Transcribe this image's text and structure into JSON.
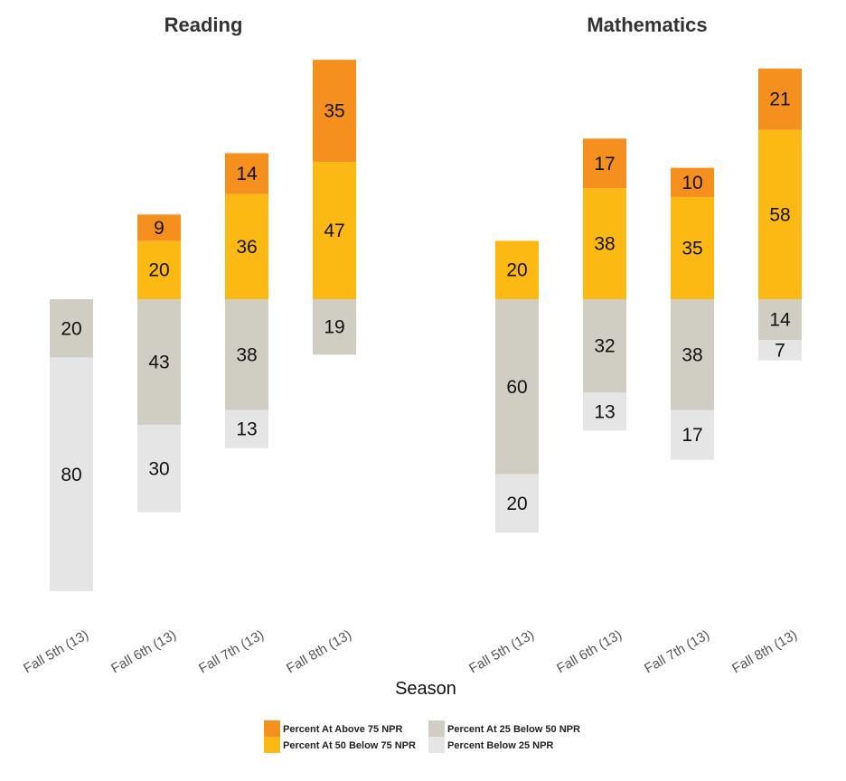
{
  "chart_data": {
    "type": "bar",
    "subtype": "diverging-stacked",
    "xlabel": "Season",
    "categories": [
      "Fall 5th (13)",
      "Fall 6th (13)",
      "Fall 7th (13)",
      "Fall 8th (13)"
    ],
    "panels": [
      {
        "title": "Reading",
        "series": [
          {
            "name": "Percent At Above 75 NPR",
            "values": [
              0,
              9,
              14,
              35
            ]
          },
          {
            "name": "Percent At 50 Below 75 NPR",
            "values": [
              0,
              20,
              36,
              47
            ]
          },
          {
            "name": "Percent At 25 Below 50 NPR",
            "values": [
              20,
              43,
              38,
              19
            ]
          },
          {
            "name": "Percent Below 25 NPR",
            "values": [
              80,
              30,
              13,
              0
            ]
          }
        ]
      },
      {
        "title": "Mathematics",
        "series": [
          {
            "name": "Percent At Above 75 NPR",
            "values": [
              0,
              17,
              10,
              21
            ]
          },
          {
            "name": "Percent At 50 Below 75 NPR",
            "values": [
              20,
              38,
              35,
              58
            ]
          },
          {
            "name": "Percent At 25 Below 50 NPR",
            "values": [
              60,
              32,
              38,
              14
            ]
          },
          {
            "name": "Percent Below 25 NPR",
            "values": [
              20,
              13,
              17,
              7
            ]
          }
        ]
      }
    ],
    "colors": {
      "Percent At Above 75 NPR": "#f5901e",
      "Percent At 50 Below 75 NPR": "#fdb913",
      "Percent At 25 Below 50 NPR": "#d0cec3",
      "Percent Below 25 NPR": "#e5e5e5"
    },
    "legend": {
      "placement": "bottom",
      "items": [
        {
          "label": "Percent At Above 75 NPR",
          "color": "#f5901e"
        },
        {
          "label": "Percent At 25 Below 50 NPR",
          "color": "#d0cec3"
        },
        {
          "label": "Percent At 50 Below 75 NPR",
          "color": "#fdb913"
        },
        {
          "label": "Percent Below 25 NPR",
          "color": "#e5e5e5"
        }
      ]
    },
    "grid": false
  }
}
